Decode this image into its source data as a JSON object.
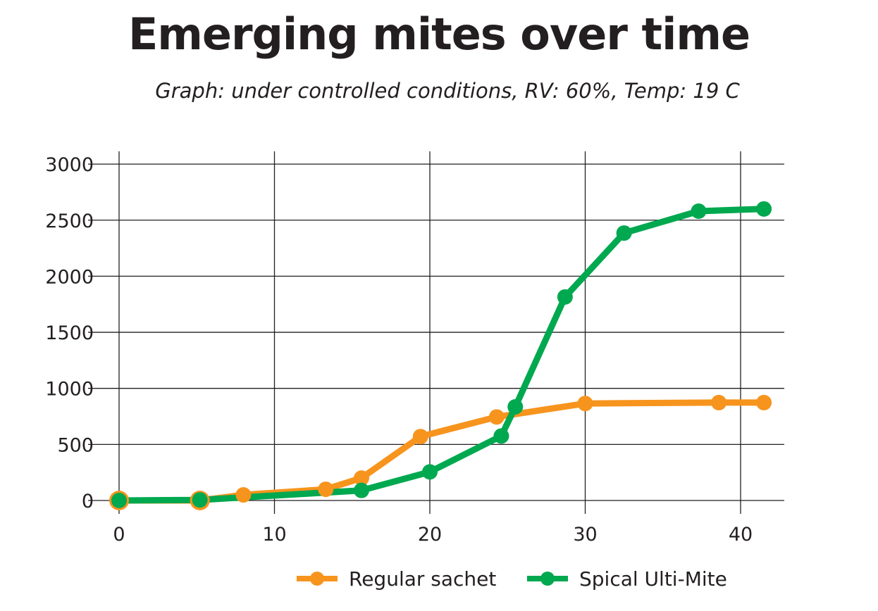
{
  "chart_data": {
    "type": "line",
    "title": "Emerging mites over time",
    "subtitle": "Graph: under controlled conditions, RV: 60%, Temp: 19 C",
    "xlabel": "",
    "ylabel": "",
    "xlim": [
      0,
      43
    ],
    "ylim": [
      0,
      3000
    ],
    "x_ticks": [
      0,
      10,
      20,
      30,
      40
    ],
    "y_ticks": [
      0,
      500,
      1000,
      1500,
      2000,
      2500,
      3000
    ],
    "x_tick_labels": [
      "0",
      "10",
      "20",
      "30",
      "40"
    ],
    "y_tick_labels": [
      "0",
      "500",
      "1000",
      "1500",
      "2000",
      "2500",
      "3000"
    ],
    "grid": true,
    "legend_position": "bottom",
    "series": [
      {
        "name": "Regular sachet",
        "color": "#f7941d",
        "x": [
          0,
          5.2,
          8,
          13.3,
          15.6,
          19.4,
          24.3,
          30,
          38.6,
          41.5
        ],
        "y": [
          0,
          0,
          50,
          100,
          200,
          570,
          745,
          865,
          873,
          873
        ]
      },
      {
        "name": "Spical Ulti-Mite",
        "color": "#00a84f",
        "x": [
          0,
          5.2,
          15.6,
          20,
          24.6,
          25.5,
          28.7,
          32.5,
          37.3,
          41.5
        ],
        "y": [
          0,
          5,
          90,
          255,
          575,
          835,
          1815,
          2385,
          2580,
          2600
        ]
      }
    ]
  }
}
